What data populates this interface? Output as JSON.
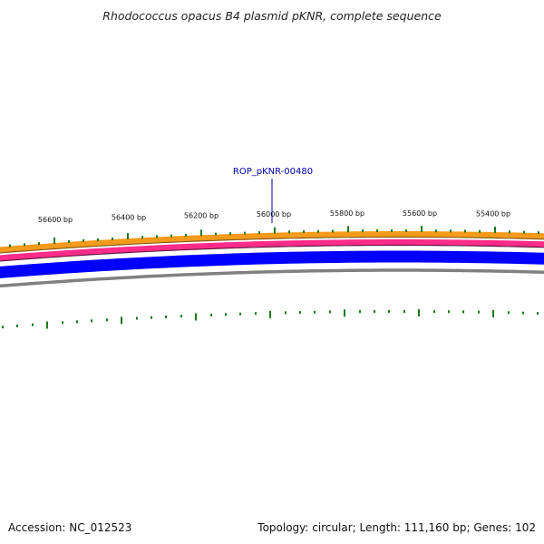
{
  "title": "Rhodococcus opacus B4 plasmid pKNR, complete sequence",
  "accession": "Accession: NC_012523",
  "summary": "Topology: circular; Length: 111,160 bp; Genes: 102",
  "gene_label": "ROP_pKNR-00480",
  "position_labels": [
    "56600 bp",
    "56400 bp",
    "56200 bp",
    "56000 bp",
    "55800 bp",
    "55600 bp",
    "55400 bp"
  ],
  "colors": {
    "orange_track": "#f59a1a",
    "pink_track": "#ff2b8a",
    "blue_track": "#0000ff",
    "gray_track": "#808080",
    "tick_green": "#1a7a1a",
    "gene_label": "#0000aa"
  }
}
